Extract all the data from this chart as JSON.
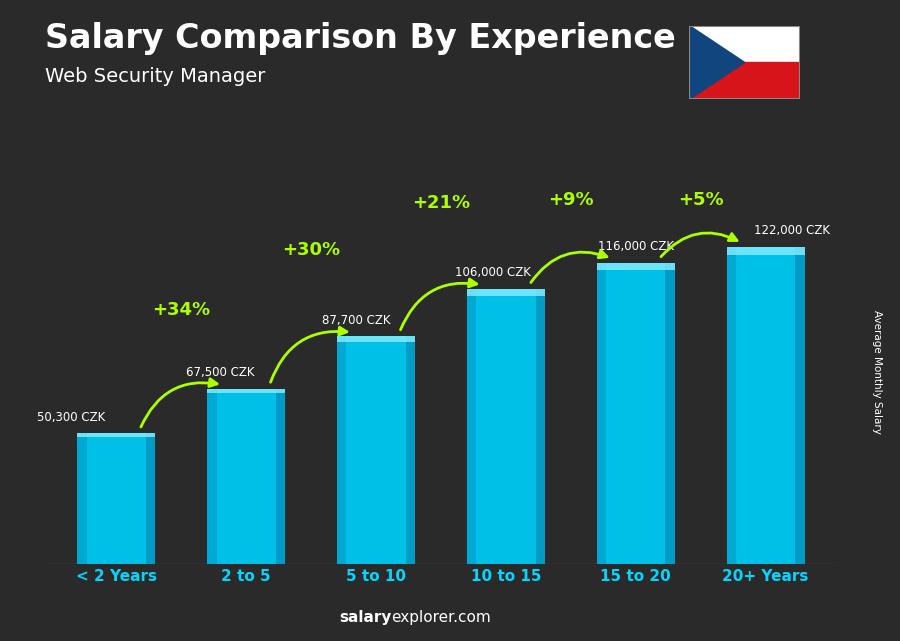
{
  "title": "Salary Comparison By Experience",
  "subtitle": "Web Security Manager",
  "categories": [
    "< 2 Years",
    "2 to 5",
    "5 to 10",
    "10 to 15",
    "15 to 20",
    "20+ Years"
  ],
  "values": [
    50300,
    67500,
    87700,
    106000,
    116000,
    122000
  ],
  "salary_labels": [
    "50,300 CZK",
    "67,500 CZK",
    "87,700 CZK",
    "106,000 CZK",
    "116,000 CZK",
    "122,000 CZK"
  ],
  "pct_labels": [
    "+34%",
    "+30%",
    "+21%",
    "+9%",
    "+5%"
  ],
  "bar_face_color": "#00c0e8",
  "bar_left_color": "#00a0cc",
  "bar_right_color": "#007aaa",
  "bar_top_color": "#88eeff",
  "bg_color": "#2a2a2a",
  "text_color_white": "#ffffff",
  "text_color_green": "#aaff00",
  "text_color_cyan": "#00d8ff",
  "ylabel": "Average Monthly Salary",
  "ylim": [
    0,
    148000
  ],
  "footer_salary_color": "#ffffff",
  "footer_explorer_color": "#aaddff"
}
